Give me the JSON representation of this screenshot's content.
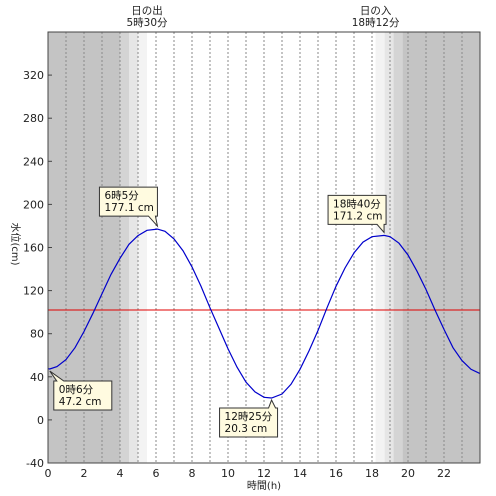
{
  "chart_data": {
    "type": "line",
    "title": "",
    "xlabel": "時間(h)",
    "ylabel": "水位(cm)",
    "xlim": [
      0,
      24
    ],
    "ylim": [
      -40,
      360
    ],
    "x_ticks": [
      0,
      2,
      4,
      6,
      8,
      10,
      12,
      14,
      16,
      18,
      20,
      22
    ],
    "y_ticks": [
      -40,
      0,
      40,
      80,
      120,
      160,
      200,
      240,
      280,
      320
    ],
    "grid": "vertical dotted every hour",
    "reference_line": {
      "value": 102,
      "color": "#e00000"
    },
    "series": [
      {
        "color": "#0000cc",
        "points": [
          [
            0.0,
            47.5
          ],
          [
            0.1,
            47.2
          ],
          [
            0.5,
            49.5
          ],
          [
            1.0,
            56
          ],
          [
            1.5,
            67
          ],
          [
            2.0,
            82
          ],
          [
            2.5,
            99
          ],
          [
            3.0,
            117
          ],
          [
            3.5,
            135
          ],
          [
            4.0,
            150
          ],
          [
            4.5,
            163
          ],
          [
            5.0,
            171
          ],
          [
            5.5,
            176
          ],
          [
            6.08,
            177.1
          ],
          [
            6.5,
            175
          ],
          [
            7.0,
            168
          ],
          [
            7.5,
            157
          ],
          [
            8.0,
            142
          ],
          [
            8.5,
            124
          ],
          [
            9.0,
            104
          ],
          [
            9.5,
            85
          ],
          [
            10.0,
            66
          ],
          [
            10.5,
            49
          ],
          [
            11.0,
            35
          ],
          [
            11.5,
            26
          ],
          [
            12.0,
            21
          ],
          [
            12.42,
            20.3
          ],
          [
            13.0,
            24
          ],
          [
            13.5,
            33
          ],
          [
            14.0,
            47
          ],
          [
            14.5,
            64
          ],
          [
            15.0,
            83
          ],
          [
            15.5,
            104
          ],
          [
            16.0,
            124
          ],
          [
            16.5,
            141
          ],
          [
            17.0,
            155
          ],
          [
            17.5,
            165
          ],
          [
            18.0,
            170
          ],
          [
            18.67,
            171.2
          ],
          [
            19.0,
            170
          ],
          [
            19.5,
            164
          ],
          [
            20.0,
            153
          ],
          [
            20.5,
            138
          ],
          [
            21.0,
            121
          ],
          [
            21.5,
            102
          ],
          [
            22.0,
            84
          ],
          [
            22.5,
            67
          ],
          [
            23.0,
            55
          ],
          [
            23.5,
            47
          ],
          [
            24.0,
            43
          ]
        ]
      }
    ],
    "annotations": [
      {
        "time": "0時6分",
        "level": "47.2 cm",
        "x": 0.1,
        "y": 47.2
      },
      {
        "time": "6時5分",
        "level": "177.1 cm",
        "x": 6.08,
        "y": 177.1
      },
      {
        "time": "12時25分",
        "level": "20.3 cm",
        "x": 12.42,
        "y": 20.3
      },
      {
        "time": "18時40分",
        "level": "171.2 cm",
        "x": 18.67,
        "y": 171.2
      }
    ],
    "sunrise": {
      "label": "日の出",
      "time": "5時30分",
      "x": 5.5
    },
    "sunset": {
      "label": "日の入",
      "time": "18時12分",
      "x": 18.2
    },
    "night_color": "#c4c4c4",
    "twilight_colors": [
      "#d4d4d4",
      "#e6e6e6",
      "#f3f3f3"
    ],
    "day_color": "#ffffff"
  }
}
